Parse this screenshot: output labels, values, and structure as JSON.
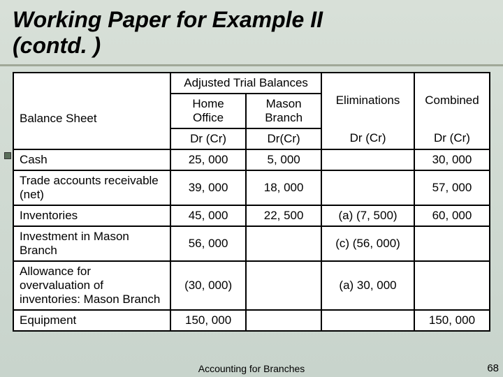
{
  "title_line1": "Working Paper for Example II",
  "title_line2": "(contd. )",
  "table": {
    "header_group": "Adjusted Trial Balances",
    "col_balance_sheet": "Balance Sheet",
    "col_home_office": "Home Office",
    "col_mason_branch": "Mason Branch",
    "col_eliminations": "Eliminations",
    "col_combined": "Combined",
    "subhdr_drcr1": "Dr (Cr)",
    "subhdr_drcr2": "Dr(Cr)",
    "subhdr_drcr3": "Dr (Cr)",
    "subhdr_drcr4": "Dr (Cr)",
    "rows": [
      {
        "label": "Cash",
        "home": "25, 000",
        "mason": "5, 000",
        "elim": "",
        "comb": "30, 000"
      },
      {
        "label": "Trade accounts receivable (net)",
        "home": "39, 000",
        "mason": "18, 000",
        "elim": "",
        "comb": "57, 000"
      },
      {
        "label": "Inventories",
        "home": "45, 000",
        "mason": "22, 500",
        "elim": "(a) (7, 500)",
        "comb": "60, 000"
      },
      {
        "label": "Investment in Mason Branch",
        "home": "56, 000",
        "mason": "",
        "elim": "(c) (56, 000)",
        "comb": ""
      },
      {
        "label": "Allowance for overvaluation of inventories: Mason Branch",
        "home": "(30, 000)",
        "mason": "",
        "elim": "(a) 30, 000",
        "comb": ""
      },
      {
        "label": "Equipment",
        "home": "150, 000",
        "mason": "",
        "elim": "",
        "comb": "150, 000"
      }
    ]
  },
  "footer_text": "Accounting for Branches",
  "page_number": "68",
  "styling": {
    "slide_bg_top": "#d8e0d8",
    "slide_bg_bottom": "#c8d4cc",
    "title_fontsize": 32,
    "title_fontweight": "bold",
    "title_fontstyle": "italic",
    "table_border_color": "#000000",
    "table_bg": "#ffffff",
    "cell_fontsize": 17,
    "rule_color": "#a0a898",
    "bullet_color": "#5a6e5a"
  }
}
